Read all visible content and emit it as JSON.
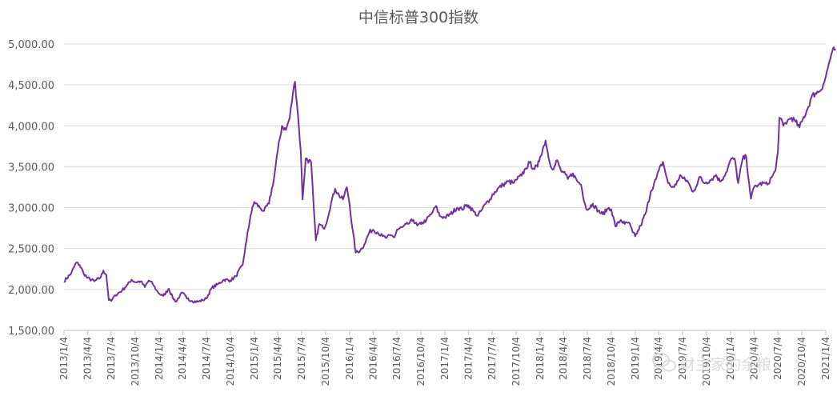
{
  "chart_data": {
    "type": "line",
    "title": "中信标普300指数",
    "xlabel": "",
    "ylabel": "",
    "ylim": [
      1500,
      5000
    ],
    "yticks": [
      "1,500.00",
      "2,000.00",
      "2,500.00",
      "3,000.00",
      "3,500.00",
      "4,000.00",
      "4,500.00",
      "5,000.00"
    ],
    "ytick_values": [
      1500,
      2000,
      2500,
      3000,
      3500,
      4000,
      4500,
      5000
    ],
    "xticks": [
      "2013/1/4",
      "2013/4/4",
      "2013/7/4",
      "2013/10/4",
      "2014/1/4",
      "2014/4/4",
      "2014/7/4",
      "2014/10/4",
      "2015/1/4",
      "2015/4/4",
      "2015/7/4",
      "2015/10/4",
      "2016/1/4",
      "2016/4/4",
      "2016/7/4",
      "2016/10/4",
      "2017/1/4",
      "2017/4/4",
      "2017/7/4",
      "2017/10/4",
      "2018/1/4",
      "2018/4/4",
      "2018/7/4",
      "2018/10/4",
      "2019/1/4",
      "2019/4/4",
      "2019/7/4",
      "2019/10/4",
      "2020/1/4",
      "2020/4/4",
      "2020/7/4",
      "2020/10/4",
      "2021/1/4"
    ],
    "grid": true,
    "series": [
      {
        "color": "#7030a0",
        "points": [
          [
            "2013/1/4",
            2100
          ],
          [
            "2013/2/1",
            2200
          ],
          [
            "2013/2/20",
            2330
          ],
          [
            "2013/3/5",
            2300
          ],
          [
            "2013/3/20",
            2200
          ],
          [
            "2013/4/4",
            2140
          ],
          [
            "2013/5/1",
            2100
          ],
          [
            "2013/5/25",
            2150
          ],
          [
            "2013/6/4",
            2230
          ],
          [
            "2013/6/15",
            2180
          ],
          [
            "2013/6/25",
            1870
          ],
          [
            "2013/7/4",
            1860
          ],
          [
            "2013/7/20",
            1930
          ],
          [
            "2013/8/15",
            1990
          ],
          [
            "2013/9/5",
            2060
          ],
          [
            "2013/9/20",
            2120
          ],
          [
            "2013/10/4",
            2090
          ],
          [
            "2013/10/25",
            2100
          ],
          [
            "2013/11/10",
            2030
          ],
          [
            "2013/11/25",
            2110
          ],
          [
            "2013/12/10",
            2070
          ],
          [
            "2013/12/25",
            1990
          ],
          [
            "2014/1/4",
            1950
          ],
          [
            "2014/1/20",
            1920
          ],
          [
            "2014/2/10",
            2010
          ],
          [
            "2014/2/25",
            1900
          ],
          [
            "2014/3/10",
            1850
          ],
          [
            "2014/3/25",
            1930
          ],
          [
            "2014/4/4",
            1960
          ],
          [
            "2014/4/20",
            1890
          ],
          [
            "2014/5/10",
            1860
          ],
          [
            "2014/6/1",
            1850
          ],
          [
            "2014/6/20",
            1870
          ],
          [
            "2014/7/4",
            1890
          ],
          [
            "2014/7/25",
            2020
          ],
          [
            "2014/8/15",
            2060
          ],
          [
            "2014/9/10",
            2120
          ],
          [
            "2014/10/4",
            2110
          ],
          [
            "2014/10/25",
            2160
          ],
          [
            "2014/11/20",
            2300
          ],
          [
            "2014/12/5",
            2600
          ],
          [
            "2014/12/20",
            2900
          ],
          [
            "2015/1/4",
            3070
          ],
          [
            "2015/1/25",
            3000
          ],
          [
            "2015/2/10",
            2960
          ],
          [
            "2015/3/1",
            3050
          ],
          [
            "2015/3/20",
            3350
          ],
          [
            "2015/4/4",
            3700
          ],
          [
            "2015/4/20",
            4000
          ],
          [
            "2015/5/5",
            3950
          ],
          [
            "2015/5/20",
            4100
          ],
          [
            "2015/6/1",
            4400
          ],
          [
            "2015/6/9",
            4540
          ],
          [
            "2015/6/20",
            4150
          ],
          [
            "2015/7/1",
            3700
          ],
          [
            "2015/7/8",
            3100
          ],
          [
            "2015/7/20",
            3600
          ],
          [
            "2015/8/10",
            3550
          ],
          [
            "2015/8/20",
            3000
          ],
          [
            "2015/8/28",
            2600
          ],
          [
            "2015/9/10",
            2800
          ],
          [
            "2015/9/25",
            2750
          ],
          [
            "2015/10/4",
            2780
          ],
          [
            "2015/10/25",
            3050
          ],
          [
            "2015/11/10",
            3230
          ],
          [
            "2015/11/25",
            3150
          ],
          [
            "2015/12/10",
            3100
          ],
          [
            "2015/12/25",
            3250
          ],
          [
            "2016/1/4",
            3050
          ],
          [
            "2016/1/15",
            2750
          ],
          [
            "2016/1/28",
            2450
          ],
          [
            "2016/2/15",
            2480
          ],
          [
            "2016/3/1",
            2550
          ],
          [
            "2016/3/20",
            2700
          ],
          [
            "2016/4/4",
            2730
          ],
          [
            "2016/4/20",
            2700
          ],
          [
            "2016/5/10",
            2650
          ],
          [
            "2016/5/25",
            2630
          ],
          [
            "2016/6/10",
            2660
          ],
          [
            "2016/6/25",
            2640
          ],
          [
            "2016/7/4",
            2730
          ],
          [
            "2016/7/25",
            2760
          ],
          [
            "2016/8/15",
            2800
          ],
          [
            "2016/9/5",
            2850
          ],
          [
            "2016/9/20",
            2780
          ],
          [
            "2016/10/4",
            2800
          ],
          [
            "2016/10/25",
            2850
          ],
          [
            "2016/11/15",
            2930
          ],
          [
            "2016/11/30",
            3020
          ],
          [
            "2016/12/15",
            2900
          ],
          [
            "2017/1/4",
            2880
          ],
          [
            "2017/1/25",
            2920
          ],
          [
            "2017/2/20",
            3000
          ],
          [
            "2017/3/10",
            2980
          ],
          [
            "2017/3/25",
            3020
          ],
          [
            "2017/4/4",
            3030
          ],
          [
            "2017/4/25",
            2950
          ],
          [
            "2017/5/10",
            2900
          ],
          [
            "2017/5/25",
            2970
          ],
          [
            "2017/6/10",
            3050
          ],
          [
            "2017/6/25",
            3100
          ],
          [
            "2017/7/4",
            3150
          ],
          [
            "2017/7/25",
            3230
          ],
          [
            "2017/8/15",
            3280
          ],
          [
            "2017/9/5",
            3320
          ],
          [
            "2017/9/25",
            3300
          ],
          [
            "2017/10/4",
            3340
          ],
          [
            "2017/10/25",
            3390
          ],
          [
            "2017/11/10",
            3480
          ],
          [
            "2017/11/25",
            3550
          ],
          [
            "2017/12/10",
            3480
          ],
          [
            "2017/12/25",
            3500
          ],
          [
            "2018/1/4",
            3620
          ],
          [
            "2018/1/25",
            3820
          ],
          [
            "2018/2/10",
            3550
          ],
          [
            "2018/2/25",
            3470
          ],
          [
            "2018/3/10",
            3580
          ],
          [
            "2018/3/25",
            3450
          ],
          [
            "2018/4/4",
            3430
          ],
          [
            "2018/4/20",
            3350
          ],
          [
            "2018/5/10",
            3420
          ],
          [
            "2018/5/25",
            3330
          ],
          [
            "2018/6/10",
            3280
          ],
          [
            "2018/6/25",
            3050
          ],
          [
            "2018/7/4",
            2970
          ],
          [
            "2018/7/25",
            3050
          ],
          [
            "2018/8/15",
            2960
          ],
          [
            "2018/9/1",
            2920
          ],
          [
            "2018/9/25",
            3000
          ],
          [
            "2018/10/4",
            2980
          ],
          [
            "2018/10/20",
            2770
          ],
          [
            "2018/11/10",
            2850
          ],
          [
            "2018/11/25",
            2800
          ],
          [
            "2018/12/10",
            2820
          ],
          [
            "2018/12/25",
            2700
          ],
          [
            "2019/1/4",
            2650
          ],
          [
            "2019/1/25",
            2780
          ],
          [
            "2019/2/15",
            2950
          ],
          [
            "2019/3/5",
            3200
          ],
          [
            "2019/3/25",
            3350
          ],
          [
            "2019/4/4",
            3450
          ],
          [
            "2019/4/20",
            3560
          ],
          [
            "2019/5/10",
            3300
          ],
          [
            "2019/5/25",
            3250
          ],
          [
            "2019/6/10",
            3280
          ],
          [
            "2019/6/25",
            3400
          ],
          [
            "2019/7/4",
            3360
          ],
          [
            "2019/7/25",
            3320
          ],
          [
            "2019/8/10",
            3200
          ],
          [
            "2019/8/25",
            3250
          ],
          [
            "2019/9/10",
            3380
          ],
          [
            "2019/9/25",
            3300
          ],
          [
            "2019/10/4",
            3310
          ],
          [
            "2019/10/25",
            3350
          ],
          [
            "2019/11/10",
            3400
          ],
          [
            "2019/11/25",
            3320
          ],
          [
            "2019/12/10",
            3380
          ],
          [
            "2019/12/25",
            3480
          ],
          [
            "2020/1/4",
            3580
          ],
          [
            "2020/1/20",
            3600
          ],
          [
            "2020/2/3",
            3300
          ],
          [
            "2020/2/20",
            3600
          ],
          [
            "2020/3/5",
            3620
          ],
          [
            "2020/3/15",
            3320
          ],
          [
            "2020/3/23",
            3110
          ],
          [
            "2020/4/4",
            3250
          ],
          [
            "2020/4/20",
            3280
          ],
          [
            "2020/5/10",
            3300
          ],
          [
            "2020/5/25",
            3280
          ],
          [
            "2020/6/10",
            3370
          ],
          [
            "2020/6/25",
            3450
          ],
          [
            "2020/7/4",
            3680
          ],
          [
            "2020/7/10",
            4100
          ],
          [
            "2020/7/25",
            4000
          ],
          [
            "2020/8/10",
            4060
          ],
          [
            "2020/8/25",
            4100
          ],
          [
            "2020/9/10",
            4050
          ],
          [
            "2020/9/25",
            3980
          ],
          [
            "2020/10/4",
            4050
          ],
          [
            "2020/10/25",
            4200
          ],
          [
            "2020/11/10",
            4350
          ],
          [
            "2020/11/25",
            4400
          ],
          [
            "2020/12/10",
            4420
          ],
          [
            "2020/12/25",
            4500
          ],
          [
            "2021/1/4",
            4600
          ],
          [
            "2021/1/15",
            4750
          ],
          [
            "2021/1/28",
            4900
          ],
          [
            "2021/2/10",
            4940
          ]
        ]
      }
    ]
  },
  "watermark": {
    "text": "财主家的余粮",
    "icon": "wechat-icon"
  }
}
